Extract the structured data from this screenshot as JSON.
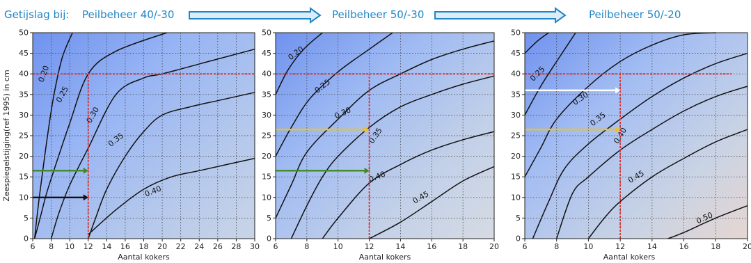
{
  "header": {
    "label1": "Getijslag bij:",
    "label2": "Peilbeheer 40/-30",
    "label3": "Peilbeheer 50/-30",
    "label4": "Peilbeheer 50/-20",
    "arrow_fill": "#dcecf9",
    "arrow_stroke": "#1f86c6"
  },
  "chart_data": [
    {
      "type": "contour",
      "title": "Peilbeheer 40/-30",
      "xlabel": "Aantal kokers",
      "ylabel": "Zeespiegelstijging(ref 1995) in cm",
      "xlim": [
        6,
        30
      ],
      "ylim": [
        0,
        50
      ],
      "xticks": [
        6,
        8,
        10,
        12,
        14,
        16,
        18,
        20,
        22,
        24,
        26,
        28,
        30
      ],
      "yticks": [
        0,
        5,
        10,
        15,
        20,
        25,
        30,
        35,
        40,
        45,
        50
      ],
      "grid": true,
      "contours": [
        {
          "level": "0.20",
          "points": [
            [
              6.2,
              0
            ],
            [
              6.6,
              8
            ],
            [
              7,
              15
            ],
            [
              7.6,
              25
            ],
            [
              8.3,
              35
            ],
            [
              9.2,
              44
            ],
            [
              10.3,
              50
            ]
          ]
        },
        {
          "level": "0.25",
          "points": [
            [
              6.2,
              0
            ],
            [
              6.8,
              5
            ],
            [
              7.5,
              11
            ],
            [
              8.5,
              18
            ],
            [
              10,
              28
            ],
            [
              12,
              40
            ],
            [
              15,
              45.5
            ],
            [
              20.5,
              50
            ]
          ]
        },
        {
          "level": "0.30",
          "points": [
            [
              8,
              0
            ],
            [
              8.8,
              6
            ],
            [
              10,
              13
            ],
            [
              12,
              22
            ],
            [
              15,
              35
            ],
            [
              18,
              39
            ],
            [
              20,
              40
            ],
            [
              25,
              43
            ],
            [
              30,
              46
            ]
          ]
        },
        {
          "level": "0.35",
          "points": [
            [
              12,
              0
            ],
            [
              12.8,
              5
            ],
            [
              14,
              12
            ],
            [
              16,
              20
            ],
            [
              18,
              26
            ],
            [
              20,
              30
            ],
            [
              23,
              32
            ],
            [
              26,
              33.5
            ],
            [
              30,
              35.5
            ]
          ]
        },
        {
          "level": "0.40",
          "points": [
            [
              12,
              1
            ],
            [
              15,
              7
            ],
            [
              18,
              12
            ],
            [
              21,
              15
            ],
            [
              24,
              16.5
            ],
            [
              27,
              18
            ],
            [
              30,
              19.5
            ]
          ]
        }
      ],
      "contour_labels": [
        {
          "text": "0.20",
          "x": 7.2,
          "y": 40,
          "angle": -70
        },
        {
          "text": "0.25",
          "x": 9.2,
          "y": 35,
          "angle": -62
        },
        {
          "text": "0.30",
          "x": 12.5,
          "y": 30,
          "angle": -60
        },
        {
          "text": "0.35",
          "x": 15,
          "y": 24,
          "angle": -38
        },
        {
          "text": "0.40",
          "x": 19,
          "y": 11.5,
          "angle": -22
        }
      ],
      "guides": [
        {
          "kind": "hline",
          "y": 40,
          "x_from": 6,
          "x_to": 30,
          "color": "#e03030"
        },
        {
          "kind": "vline",
          "x": 12,
          "y_from": 0,
          "y_to": 40,
          "color": "#e03030"
        }
      ],
      "arrows": [
        {
          "y": 16.5,
          "x_from": 6,
          "x_to": 12,
          "color": "#3e8a22"
        },
        {
          "y": 10,
          "x_from": 6,
          "x_to": 12,
          "color": "#111111"
        }
      ]
    },
    {
      "type": "contour",
      "title": "Peilbeheer 50/-30",
      "xlabel": "Aantal kokers",
      "ylabel": "",
      "xlim": [
        6,
        20
      ],
      "ylim": [
        0,
        50
      ],
      "xticks": [
        6,
        8,
        10,
        12,
        14,
        16,
        18,
        20
      ],
      "yticks": [
        0,
        5,
        10,
        15,
        20,
        25,
        30,
        35,
        40,
        45,
        50
      ],
      "grid": true,
      "contours": [
        {
          "level": "0.20",
          "points": [
            [
              6,
              35
            ],
            [
              6.8,
              41
            ],
            [
              7.8,
              46
            ],
            [
              9,
              50
            ]
          ]
        },
        {
          "level": "0.25",
          "points": [
            [
              6,
              20
            ],
            [
              7,
              27
            ],
            [
              8.2,
              34
            ],
            [
              10,
              40.5
            ],
            [
              12,
              46
            ],
            [
              13.5,
              50
            ]
          ]
        },
        {
          "level": "0.30",
          "points": [
            [
              6,
              5
            ],
            [
              7,
              13
            ],
            [
              8,
              21
            ],
            [
              10,
              29
            ],
            [
              12,
              36
            ],
            [
              14,
              40
            ],
            [
              16,
              43.5
            ],
            [
              18,
              46
            ],
            [
              20,
              48
            ]
          ]
        },
        {
          "level": "0.35",
          "points": [
            [
              7,
              0
            ],
            [
              8,
              8
            ],
            [
              9,
              15
            ],
            [
              10,
              20
            ],
            [
              12,
              27
            ],
            [
              14,
              32
            ],
            [
              16,
              35
            ],
            [
              18,
              37.5
            ],
            [
              20,
              39.5
            ]
          ]
        },
        {
          "level": "0.40",
          "points": [
            [
              9,
              0
            ],
            [
              10,
              5
            ],
            [
              12,
              13.5
            ],
            [
              14,
              18
            ],
            [
              16,
              21.5
            ],
            [
              18,
              24
            ],
            [
              20,
              26
            ]
          ]
        },
        {
          "level": "0.45",
          "points": [
            [
              12,
              0
            ],
            [
              14,
              4
            ],
            [
              16,
              9
            ],
            [
              18,
              14
            ],
            [
              20,
              17.5
            ]
          ]
        }
      ],
      "contour_labels": [
        {
          "text": "0.20",
          "x": 7.3,
          "y": 45,
          "angle": -38
        },
        {
          "text": "0.25",
          "x": 9.0,
          "y": 37,
          "angle": -38
        },
        {
          "text": "0.30",
          "x": 10.3,
          "y": 30.5,
          "angle": -25
        },
        {
          "text": "0.35",
          "x": 12.4,
          "y": 25,
          "angle": -55
        },
        {
          "text": "0.40",
          "x": 12.5,
          "y": 15,
          "angle": -22
        },
        {
          "text": "0.45",
          "x": 15.3,
          "y": 10,
          "angle": -30
        }
      ],
      "guides": [
        {
          "kind": "hline",
          "y": 40,
          "x_from": 6,
          "x_to": 20,
          "color": "#e03030"
        },
        {
          "kind": "vline",
          "x": 12,
          "y_from": 0,
          "y_to": 40,
          "color": "#e03030"
        }
      ],
      "arrows": [
        {
          "y": 26.5,
          "x_from": 6,
          "x_to": 12,
          "color": "#f1c21b"
        },
        {
          "y": 16.5,
          "x_from": 6,
          "x_to": 12,
          "color": "#3e8a22"
        }
      ]
    },
    {
      "type": "contour",
      "title": "Peilbeheer 50/-20",
      "xlabel": "Aantal kokers",
      "ylabel": "",
      "xlim": [
        6,
        20
      ],
      "ylim": [
        0,
        50
      ],
      "xticks": [
        6,
        8,
        10,
        12,
        14,
        16,
        18,
        20
      ],
      "yticks": [
        0,
        5,
        10,
        15,
        20,
        25,
        30,
        35,
        40,
        45,
        50
      ],
      "grid": true,
      "contours": [
        {
          "level": "0.20",
          "points": [
            [
              6,
              45
            ],
            [
              6.8,
              48
            ],
            [
              7.5,
              50
            ]
          ]
        },
        {
          "level": "0.25",
          "points": [
            [
              6,
              30
            ],
            [
              7,
              37
            ],
            [
              8,
              43
            ],
            [
              9.2,
              50
            ]
          ]
        },
        {
          "level": "0.30",
          "points": [
            [
              6,
              15
            ],
            [
              7,
              22
            ],
            [
              8,
              29
            ],
            [
              10,
              37
            ],
            [
              12,
              43
            ],
            [
              14,
              47
            ],
            [
              16,
              49.5
            ],
            [
              18,
              50
            ]
          ]
        },
        {
          "level": "0.35",
          "points": [
            [
              6.5,
              0
            ],
            [
              7.5,
              9
            ],
            [
              8.5,
              17
            ],
            [
              10,
              23
            ],
            [
              12,
              29
            ],
            [
              14,
              34.5
            ],
            [
              16,
              39
            ],
            [
              18,
              42.5
            ],
            [
              20,
              45
            ]
          ]
        },
        {
          "level": "0.40",
          "points": [
            [
              8,
              0
            ],
            [
              9,
              11
            ],
            [
              10,
              15
            ],
            [
              12,
              21.5
            ],
            [
              14,
              26.5
            ],
            [
              16,
              31
            ],
            [
              18,
              34.5
            ],
            [
              20,
              37
            ]
          ]
        },
        {
          "level": "0.45",
          "points": [
            [
              10,
              0
            ],
            [
              11,
              5
            ],
            [
              12,
              9
            ],
            [
              14,
              15
            ],
            [
              16,
              19.5
            ],
            [
              18,
              23.5
            ],
            [
              20,
              26.5
            ]
          ]
        },
        {
          "level": "0.50",
          "points": [
            [
              15,
              0
            ],
            [
              16,
              1.5
            ],
            [
              18,
              5
            ],
            [
              20,
              8
            ]
          ]
        }
      ],
      "contour_labels": [
        {
          "text": "0.25",
          "x": 6.8,
          "y": 40,
          "angle": -45
        },
        {
          "text": "0.30",
          "x": 9.5,
          "y": 34,
          "angle": -35
        },
        {
          "text": "0.35",
          "x": 10.6,
          "y": 29,
          "angle": -38
        },
        {
          "text": "0.40",
          "x": 12.0,
          "y": 25,
          "angle": -58
        },
        {
          "text": "0.45",
          "x": 13.0,
          "y": 15,
          "angle": -30
        },
        {
          "text": "0.50",
          "x": 17.3,
          "y": 5,
          "angle": -25
        }
      ],
      "guides": [
        {
          "kind": "hline",
          "y": 40,
          "x_from": 6,
          "x_to": 19,
          "color": "#e03030"
        },
        {
          "kind": "vline",
          "x": 12,
          "y_from": 0,
          "y_to": 40,
          "color": "#e03030"
        }
      ],
      "arrows": [
        {
          "y": 36,
          "x_from": 6,
          "x_to": 12,
          "color": "#ffffff"
        },
        {
          "y": 26.5,
          "x_from": 6,
          "x_to": 12,
          "color": "#f1c21b"
        }
      ]
    }
  ]
}
